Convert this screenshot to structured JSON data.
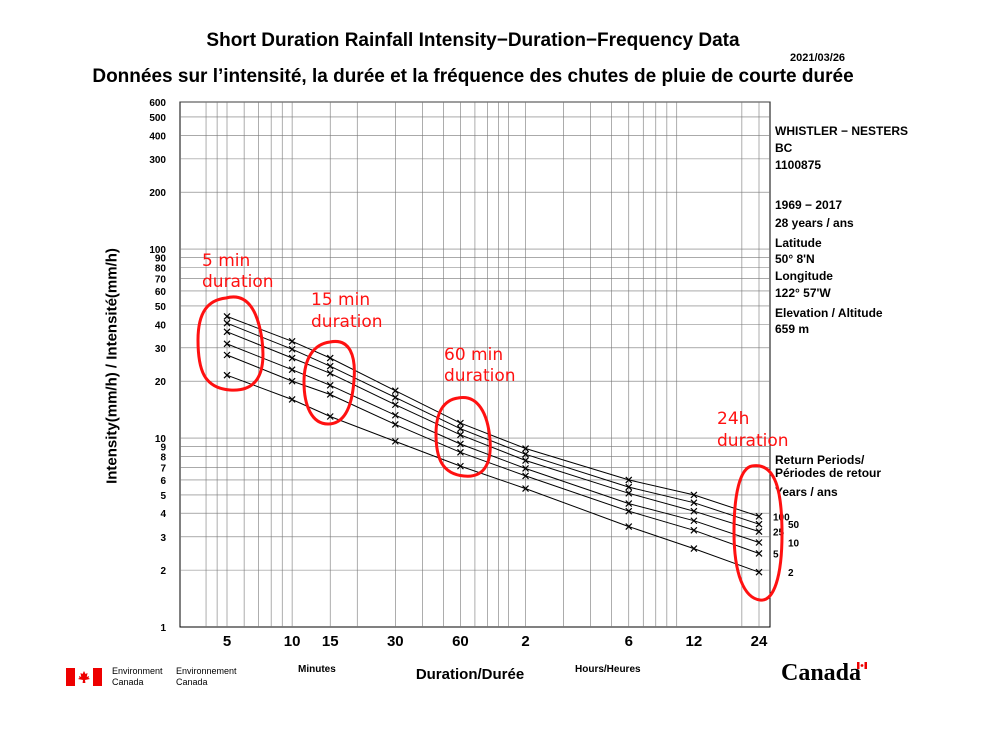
{
  "header": {
    "title_en": "Short Duration Rainfall Intensity−Duration−Frequency Data",
    "title_fr": "Données sur l’intensité, la durée et la fréquence des chutes de pluie de courte durée",
    "date": "2021/03/26"
  },
  "station": {
    "name": "WHISTLER − NESTERS",
    "province": "BC",
    "id": "1100875",
    "years": "1969 − 2017",
    "n_years": "28 years / ans",
    "lat_label": "Latitude",
    "lat": "50°  8'N",
    "lon_label": "Longitude",
    "lon": "122° 57'W",
    "elev_label": "Elevation / Altitude",
    "elev": "659 m",
    "return_label_en": "Return Periods/",
    "return_label_fr": "Périodes de retour",
    "years_label": "Years / ans"
  },
  "footer": {
    "env_en": "Environment",
    "env_en2": "Canada",
    "env_fr": "Environnement",
    "env_fr2": "Canada",
    "wordmark": "Canada",
    "minutes": "Minutes",
    "hours": "Hours/Heures"
  },
  "annotations": [
    {
      "line1": "5 min",
      "line2": "duration"
    },
    {
      "line1": "15 min",
      "line2": "duration"
    },
    {
      "line1": "60 min",
      "line2": "duration"
    },
    {
      "line1": "24h",
      "line2": "duration"
    }
  ],
  "colors": {
    "annotation": "#ff1111",
    "grid": "#555555",
    "line": "#000000"
  },
  "chart_data": {
    "type": "line",
    "title": "Short Duration Rainfall Intensity−Duration−Frequency Data",
    "xlabel": "Duration/Durée",
    "ylabel": "Intensity(mm/h) / Intensité(mm/h)",
    "x_scale": "log",
    "y_scale": "log",
    "ylim": [
      1,
      600
    ],
    "grid": true,
    "legend_placement": "right",
    "x_minutes": [
      5,
      10,
      15,
      30,
      60,
      120,
      360,
      720,
      1440
    ],
    "x_tick_labels": [
      "5",
      "10",
      "15",
      "30",
      "60",
      "2",
      "6",
      "12",
      "24"
    ],
    "y_tick_labels": [
      "1",
      "2",
      "3",
      "4",
      "5",
      "6",
      "7",
      "8",
      "9",
      "10",
      "20",
      "30",
      "40",
      "50",
      "60",
      "70",
      "80",
      "90",
      "100",
      "200",
      "300",
      "400",
      "500",
      "600"
    ],
    "series": [
      {
        "name": "2",
        "values": [
          21.5,
          16.0,
          13.0,
          9.6,
          7.1,
          5.4,
          3.4,
          2.6,
          1.95
        ]
      },
      {
        "name": "5",
        "values": [
          27.5,
          20.0,
          17.0,
          11.8,
          8.4,
          6.3,
          4.1,
          3.25,
          2.45
        ]
      },
      {
        "name": "10",
        "values": [
          31.5,
          23.0,
          19.0,
          13.2,
          9.3,
          6.9,
          4.5,
          3.65,
          2.8
        ]
      },
      {
        "name": "25",
        "values": [
          36.5,
          26.5,
          22.0,
          15.0,
          10.4,
          7.6,
          5.1,
          4.1,
          3.2
        ]
      },
      {
        "name": "50",
        "values": [
          40.5,
          29.5,
          24.0,
          16.4,
          11.2,
          8.2,
          5.5,
          4.55,
          3.5
        ]
      },
      {
        "name": "100",
        "values": [
          44.0,
          32.5,
          26.5,
          17.8,
          12.0,
          8.8,
          6.0,
          5.0,
          3.85
        ]
      }
    ]
  }
}
